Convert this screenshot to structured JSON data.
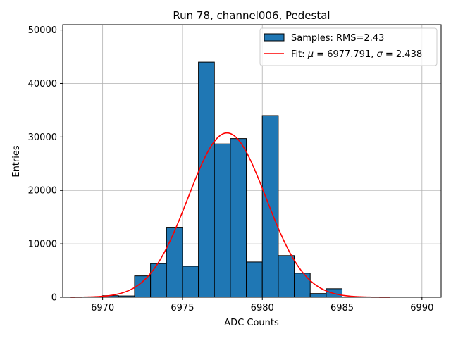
{
  "chart_data": {
    "type": "bar",
    "title": "Run 78, channel006, Pedestal",
    "xlabel": "ADC Counts",
    "ylabel": "Entries",
    "xlim": [
      6967.5,
      6991.2
    ],
    "ylim": [
      0,
      51000
    ],
    "xticks": [
      6970,
      6975,
      6980,
      6985,
      6990
    ],
    "yticks": [
      0,
      10000,
      20000,
      30000,
      40000,
      50000
    ],
    "grid": true,
    "legend_position": "top-right",
    "histogram": {
      "name": "Samples: RMS=2.43",
      "color": "#1f77b4",
      "bin_width": 1,
      "bin_left_edges": [
        6970,
        6971,
        6972,
        6973,
        6974,
        6975,
        6976,
        6977,
        6978,
        6979,
        6980,
        6981,
        6982,
        6983,
        6984
      ],
      "values": [
        300,
        250,
        4000,
        6300,
        13100,
        5800,
        44000,
        28700,
        29700,
        6600,
        34000,
        7800,
        4500,
        700,
        1600
      ]
    },
    "fit": {
      "name_prefix": "Fit: ",
      "name_mu": "μ",
      "name_mid": " = 6977.791, ",
      "name_sigma": "σ",
      "name_suffix": " = 2.438",
      "color": "#ff0000",
      "mu": 6977.791,
      "sigma": 2.438,
      "amplitude": 30750,
      "x_range": [
        6968,
        6988
      ]
    }
  }
}
